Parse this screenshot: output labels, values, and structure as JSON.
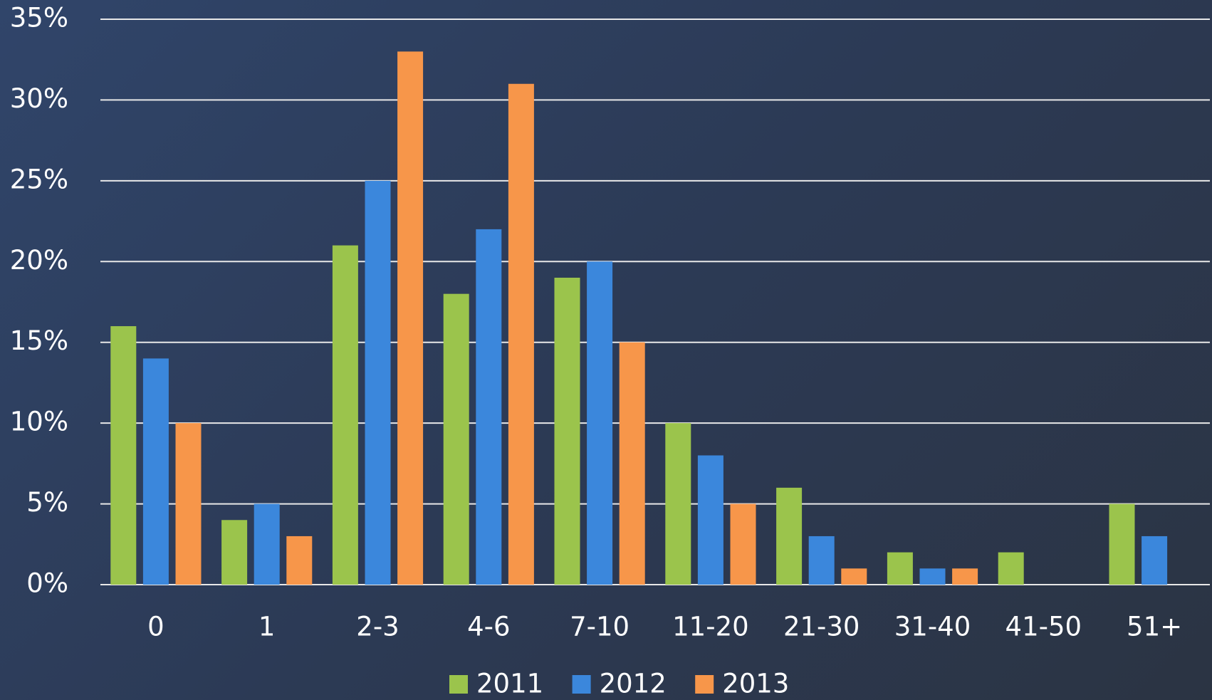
{
  "chart_data": {
    "type": "bar",
    "categories": [
      "0",
      "1",
      "2-3",
      "4-6",
      "7-10",
      "11-20",
      "21-30",
      "31-40",
      "41-50",
      "51+"
    ],
    "series": [
      {
        "name": "2011",
        "color": "#9bc44c",
        "values": [
          16,
          4,
          21,
          18,
          19,
          10,
          6,
          2,
          2,
          5
        ]
      },
      {
        "name": "2012",
        "color": "#3b87dc",
        "values": [
          14,
          5,
          25,
          22,
          20,
          8,
          3,
          1,
          0,
          3
        ]
      },
      {
        "name": "2013",
        "color": "#f7964a",
        "values": [
          10,
          3,
          33,
          31,
          15,
          5,
          1,
          1,
          0,
          0
        ]
      }
    ],
    "ylim": [
      0,
      35
    ],
    "yticks": [
      {
        "value": 0,
        "label": "0%"
      },
      {
        "value": 5,
        "label": "5%"
      },
      {
        "value": 10,
        "label": "10%"
      },
      {
        "value": 15,
        "label": "15%"
      },
      {
        "value": 20,
        "label": "20%"
      },
      {
        "value": 25,
        "label": "25%"
      },
      {
        "value": 30,
        "label": "30%"
      },
      {
        "value": 35,
        "label": "35%"
      }
    ],
    "grid": true,
    "legend": "bottom"
  }
}
